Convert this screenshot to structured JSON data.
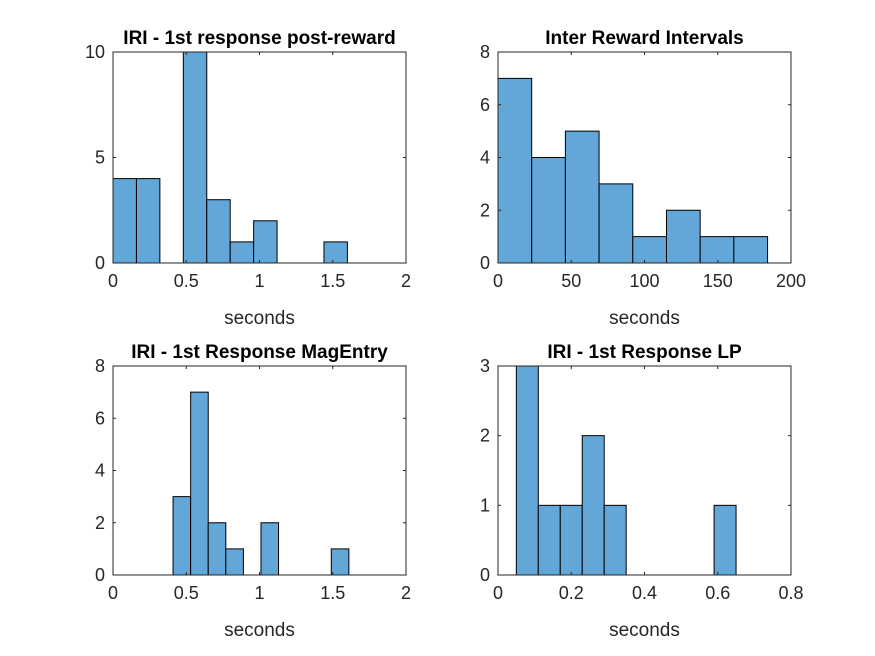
{
  "chart_data": [
    {
      "type": "bar",
      "title": "IRI - 1st response post-reward",
      "xlabel": "seconds",
      "ylabel": "",
      "xlim": [
        0,
        2
      ],
      "ylim": [
        0,
        10
      ],
      "xticks": [
        "0",
        "0.5",
        "1",
        "1.5",
        "2"
      ],
      "xtick_values": [
        0,
        0.5,
        1,
        1.5,
        2
      ],
      "yticks": [
        "0",
        "5",
        "10"
      ],
      "ytick_values": [
        0,
        5,
        10
      ],
      "bin_edges": [
        0.0,
        0.16,
        0.32,
        0.48,
        0.64,
        0.8,
        0.96,
        1.12,
        1.28,
        1.44,
        1.6
      ],
      "values": [
        4,
        4,
        0,
        10,
        3,
        1,
        2,
        0,
        0,
        1
      ],
      "bar_color": "#63A6D8"
    },
    {
      "type": "bar",
      "title": "Inter Reward Intervals",
      "xlabel": "seconds",
      "ylabel": "",
      "xlim": [
        0,
        200
      ],
      "ylim": [
        0,
        8
      ],
      "xticks": [
        "0",
        "50",
        "100",
        "150",
        "200"
      ],
      "xtick_values": [
        0,
        50,
        100,
        150,
        200
      ],
      "yticks": [
        "0",
        "2",
        "4",
        "6",
        "8"
      ],
      "ytick_values": [
        0,
        2,
        4,
        6,
        8
      ],
      "bin_edges": [
        0,
        23,
        46,
        69,
        92,
        115,
        138,
        161,
        184
      ],
      "values": [
        7,
        4,
        5,
        3,
        1,
        2,
        1,
        1
      ],
      "bar_color": "#63A6D8"
    },
    {
      "type": "bar",
      "title": "IRI - 1st Response MagEntry",
      "xlabel": "seconds",
      "ylabel": "",
      "xlim": [
        0,
        2
      ],
      "ylim": [
        0,
        8
      ],
      "xticks": [
        "0",
        "0.5",
        "1",
        "1.5",
        "2"
      ],
      "xtick_values": [
        0,
        0.5,
        1,
        1.5,
        2
      ],
      "yticks": [
        "0",
        "2",
        "4",
        "6",
        "8"
      ],
      "ytick_values": [
        0,
        2,
        4,
        6,
        8
      ],
      "bin_edges": [
        0.41,
        0.53,
        0.65,
        0.77,
        0.89,
        1.01,
        1.13,
        1.25,
        1.37,
        1.49,
        1.61
      ],
      "values": [
        3,
        7,
        2,
        1,
        0,
        2,
        0,
        0,
        0,
        1
      ],
      "bar_color": "#63A6D8"
    },
    {
      "type": "bar",
      "title": "IRI - 1st Response LP",
      "xlabel": "seconds",
      "ylabel": "",
      "xlim": [
        0,
        0.8
      ],
      "ylim": [
        0,
        3
      ],
      "xticks": [
        "0",
        "0.2",
        "0.4",
        "0.6",
        "0.8"
      ],
      "xtick_values": [
        0,
        0.2,
        0.4,
        0.6,
        0.8
      ],
      "yticks": [
        "0",
        "1",
        "2",
        "3"
      ],
      "ytick_values": [
        0,
        1,
        2,
        3
      ],
      "bin_edges": [
        0.05,
        0.11,
        0.17,
        0.23,
        0.29,
        0.35,
        0.41,
        0.47,
        0.53,
        0.59,
        0.65
      ],
      "values": [
        3,
        1,
        1,
        2,
        1,
        0,
        0,
        0,
        0,
        1
      ],
      "bar_color": "#63A6D8"
    }
  ]
}
